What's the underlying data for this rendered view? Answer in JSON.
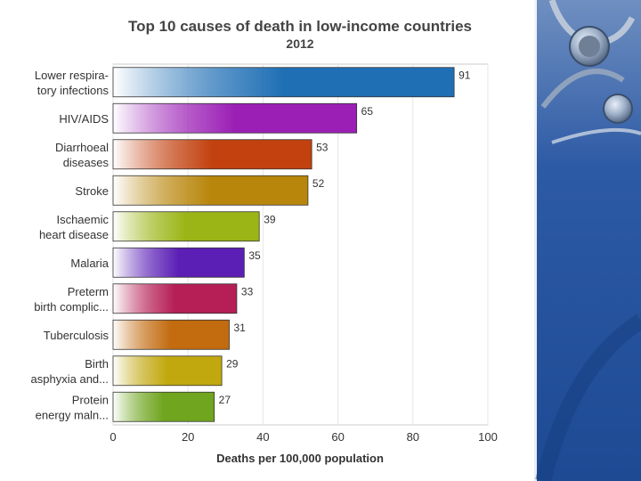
{
  "chart_data": {
    "type": "bar",
    "orientation": "horizontal",
    "title": "Top 10 causes of death in low-income countries",
    "subtitle": "2012",
    "xlabel": "Deaths per 100,000 population",
    "ylabel": "",
    "xlim": [
      0,
      100
    ],
    "x_ticks": [
      "0",
      "20",
      "40",
      "60",
      "80",
      "100"
    ],
    "grid": true,
    "categories": [
      [
        "Lower respira-",
        "tory infections"
      ],
      [
        "HIV/AIDS"
      ],
      [
        "Diarrhoeal",
        "diseases"
      ],
      [
        "Stroke"
      ],
      [
        "Ischaemic",
        "heart disease"
      ],
      [
        "Malaria"
      ],
      [
        "Preterm",
        "birth complic..."
      ],
      [
        "Tuberculosis"
      ],
      [
        "Birth",
        "asphyxia and..."
      ],
      [
        "Protein",
        "energy maln..."
      ]
    ],
    "values": [
      91,
      65,
      53,
      52,
      39,
      35,
      33,
      31,
      29,
      27
    ],
    "value_labels": [
      "91",
      "65",
      "53",
      "52",
      "39",
      "35",
      "33",
      "31",
      "29",
      "27"
    ],
    "colors": [
      "#1f6fb5",
      "#9b1fb5",
      "#c2410f",
      "#b8860b",
      "#9ab515",
      "#5b1fb5",
      "#b51f55",
      "#c26b0f",
      "#c2a80f",
      "#6fa51f"
    ]
  },
  "decoration": {
    "icon": "stethoscope-icon",
    "panel_color": "#1f4f9a"
  }
}
